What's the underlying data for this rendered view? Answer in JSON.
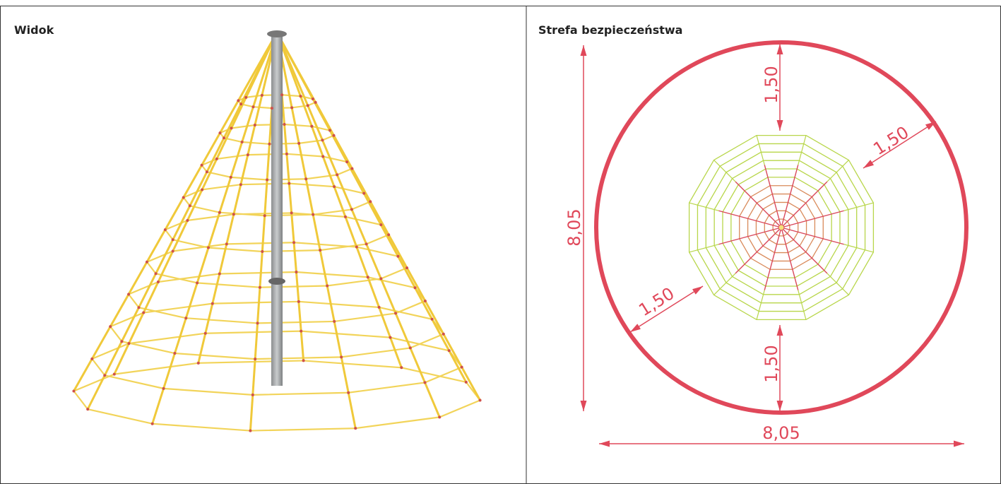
{
  "left_panel": {
    "title": "Widok"
  },
  "right_panel": {
    "title": "Strefa bezpieczeństwa",
    "dimension_labels": {
      "top": "1,50",
      "upper_right": "1,50",
      "lower_left": "1,50",
      "bottom": "1,50",
      "height": "8,05",
      "width": "8,05"
    }
  }
}
